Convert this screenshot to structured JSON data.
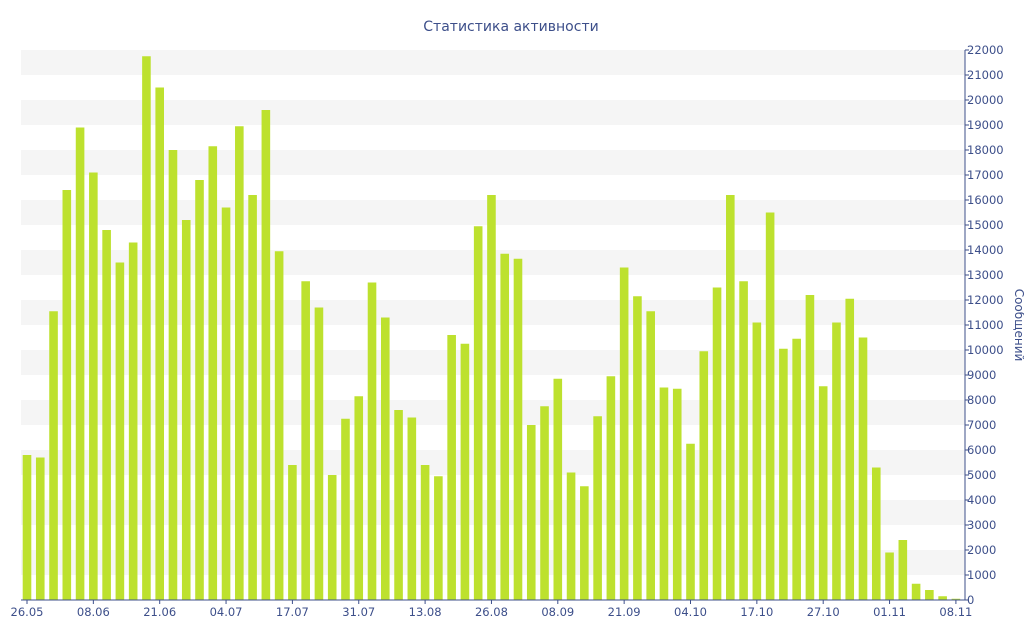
{
  "colors": {
    "bar": "#bde12e",
    "band": "#f5f5f5",
    "text": "#3d4f8a",
    "axis": "#3d4f8a"
  },
  "chart_data": {
    "type": "bar",
    "title": "Статистика активности",
    "ylabel": "Сообщений",
    "xlabel": "",
    "ylim": [
      0,
      22000
    ],
    "y_axis_side": "right",
    "y_ticks": [
      0,
      1000,
      2000,
      3000,
      4000,
      5000,
      6000,
      7000,
      8000,
      9000,
      10000,
      11000,
      12000,
      13000,
      14000,
      15000,
      16000,
      17000,
      18000,
      19000,
      20000,
      21000,
      22000
    ],
    "x_tick_labels": [
      {
        "index": 0,
        "label": "26.05"
      },
      {
        "index": 5,
        "label": "08.06"
      },
      {
        "index": 10,
        "label": "21.06"
      },
      {
        "index": 15,
        "label": "04.07"
      },
      {
        "index": 20,
        "label": "17.07"
      },
      {
        "index": 25,
        "label": "31.07"
      },
      {
        "index": 30,
        "label": "13.08"
      },
      {
        "index": 35,
        "label": "26.08"
      },
      {
        "index": 40,
        "label": "08.09"
      },
      {
        "index": 45,
        "label": "21.09"
      },
      {
        "index": 50,
        "label": "04.10"
      },
      {
        "index": 55,
        "label": "17.10"
      },
      {
        "index": 60,
        "label": "27.10"
      },
      {
        "index": 65,
        "label": "01.11"
      },
      {
        "index": 70,
        "label": "08.11"
      }
    ],
    "grid": "alternating horizontal bands",
    "series": [
      {
        "values": [
          5800,
          5700,
          11550,
          16400,
          18900,
          17100,
          14800,
          13500,
          14300,
          21750,
          20500,
          18000,
          15200,
          16800,
          18150,
          15700,
          18950,
          16200,
          19600,
          13950,
          5400,
          12750,
          11700,
          5000,
          7250,
          8150,
          12700,
          11300,
          7600,
          7300,
          5400,
          4950,
          10600,
          10250,
          14950,
          16200,
          13850,
          13650,
          7000,
          7750,
          8850,
          5100,
          4550,
          7350,
          8950,
          13300,
          12150,
          11550,
          8500,
          8450,
          6250,
          9950,
          12500,
          16200,
          12750,
          11100,
          15500,
          10050,
          10450,
          12200,
          8550,
          11100,
          12050,
          10500,
          5300,
          1900,
          2400,
          650,
          400,
          150,
          50
        ]
      }
    ]
  }
}
